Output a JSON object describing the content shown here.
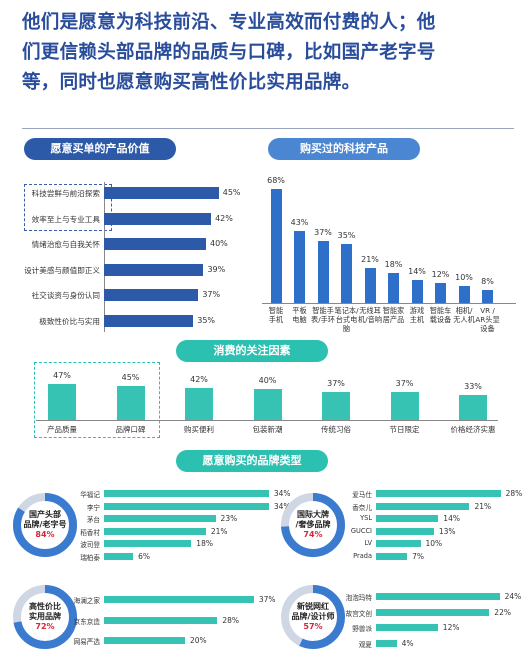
{
  "headline": [
    "他们是愿意为科技前沿、专业高效而付费的人；他",
    "们更信赖头部品牌的品质与口碑，比如国产老字号",
    "等，同时也愿意购买高性价比实用品牌。"
  ],
  "colors": {
    "navy": "#2d5aa8",
    "blue": "#2d6fc9",
    "teal": "#36c3b4",
    "red": "#d9243b"
  },
  "chart_data": [
    {
      "type": "bar",
      "orientation": "horizontal",
      "title": "愿意买单的产品价值",
      "categories": [
        "科技尝鲜与前沿探索",
        "效率至上与专业工具",
        "情绪治愈与自我关怀",
        "设计美感与颜值即正义",
        "社交谈资与身份认同",
        "极致性价比与实用"
      ],
      "values": [
        45,
        42,
        40,
        39,
        37,
        35
      ],
      "value_labels": [
        "45%",
        "42%",
        "40%",
        "39%",
        "37%",
        "35%"
      ],
      "highlighted_categories": [
        "科技尝鲜与前沿探索",
        "效率至上与专业工具"
      ]
    },
    {
      "type": "bar",
      "title": "购买过的科技产品",
      "categories": [
        "智能手机",
        "平板电脑",
        "智能手表/手环",
        "笔记本/台式电脑",
        "无线耳机/音响",
        "智能家居产品",
        "游戏主机",
        "智能车载设备",
        "相机/无人机",
        "VR/AR头显设备"
      ],
      "category_lines": [
        [
          "智能",
          "手机"
        ],
        [
          "平板",
          "电脑"
        ],
        [
          "智能手",
          "表/手环"
        ],
        [
          "笔记本/",
          "台式电",
          "脑"
        ],
        [
          "无线耳",
          "机/音响"
        ],
        [
          "智能家",
          "居产品"
        ],
        [
          "游戏",
          "主机"
        ],
        [
          "智能车",
          "载设备"
        ],
        [
          "相机/",
          "无人机"
        ],
        [
          "VR /",
          "AR头显",
          "设备"
        ]
      ],
      "values": [
        68,
        43,
        37,
        35,
        21,
        18,
        14,
        12,
        10,
        8
      ],
      "value_labels": [
        "68%",
        "43%",
        "37%",
        "35%",
        "21%",
        "18%",
        "14%",
        "12%",
        "10%",
        "8%"
      ]
    },
    {
      "type": "bar",
      "title": "消费的关注因素",
      "categories": [
        "产品质量",
        "品牌口碑",
        "购买便利",
        "包装新潮",
        "传统习俗",
        "节日限定",
        "价格经济实惠"
      ],
      "values": [
        47,
        45,
        42,
        40,
        37,
        37,
        33
      ],
      "value_labels": [
        "47%",
        "45%",
        "42%",
        "40%",
        "37%",
        "37%",
        "33%"
      ],
      "highlighted_categories": [
        "产品质量",
        "品牌口碑"
      ]
    },
    {
      "type": "bar",
      "orientation": "horizontal",
      "title": "愿意购买的品牌类型",
      "groups": [
        {
          "name_lines": [
            "国产头部",
            "品牌/老字号"
          ],
          "share": 84,
          "share_label": "84%",
          "categories": [
            "华福记",
            "李宁",
            "茅台",
            "稻香村",
            "波司登",
            "瑞柏泰"
          ],
          "values": [
            34,
            34,
            23,
            21,
            18,
            6
          ],
          "value_labels": [
            "34%",
            "34%",
            "23%",
            "21%",
            "18%",
            "6%"
          ]
        },
        {
          "name_lines": [
            "国际大牌",
            "/奢侈品牌"
          ],
          "share": 74,
          "share_label": "74%",
          "categories": [
            "爱马仕",
            "香奈儿",
            "YSL",
            "GUCCI",
            "LV",
            "Prada"
          ],
          "values": [
            28,
            21,
            14,
            13,
            10,
            7
          ],
          "value_labels": [
            "28%",
            "21%",
            "14%",
            "13%",
            "10%",
            "7%"
          ]
        },
        {
          "name_lines": [
            "高性价比",
            "实用品牌"
          ],
          "share": 72,
          "share_label": "72%",
          "categories": [
            "海澜之家",
            "京东京造",
            "网易严选"
          ],
          "values": [
            37,
            28,
            20
          ],
          "value_labels": [
            "37%",
            "28%",
            "20%"
          ]
        },
        {
          "name_lines": [
            "新锐网红",
            "品牌/设计师"
          ],
          "share": 57,
          "share_label": "57%",
          "categories": [
            "泡泡玛特",
            "故宫文创",
            "野兽派",
            "观夏"
          ],
          "values": [
            24,
            22,
            12,
            4
          ],
          "value_labels": [
            "24%",
            "22%",
            "12%",
            "4%"
          ]
        }
      ]
    }
  ]
}
